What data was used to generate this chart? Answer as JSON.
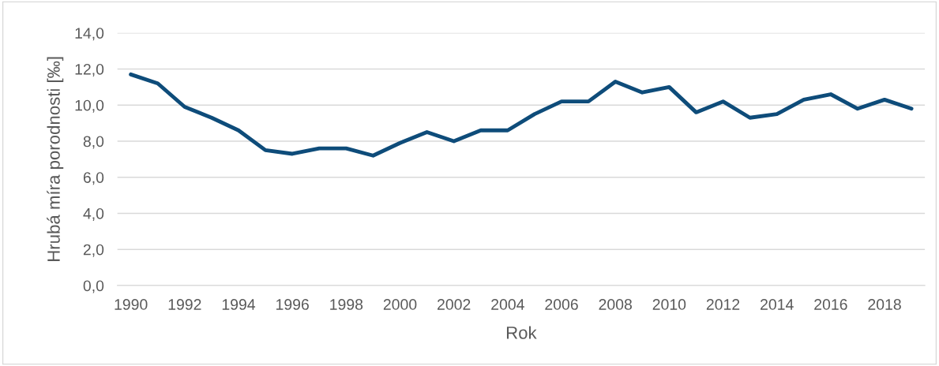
{
  "chart_data": {
    "type": "line",
    "xlabel": "Rok",
    "ylabel": "Hrubá míra porodnosti [‰]",
    "categories": [
      "1990",
      null,
      "1992",
      null,
      "1994",
      null,
      "1996",
      null,
      "1998",
      null,
      "2000",
      null,
      "2002",
      null,
      "2004",
      null,
      "2006",
      null,
      "2008",
      null,
      "2010",
      null,
      "2012",
      null,
      "2014",
      null,
      "2016",
      null,
      "2018",
      null
    ],
    "series": [
      {
        "color": "#0e4c7a",
        "values": [
          11.7,
          11.2,
          9.9,
          9.3,
          8.6,
          7.5,
          7.3,
          7.6,
          7.6,
          7.2,
          7.9,
          8.5,
          8.0,
          8.6,
          8.6,
          9.5,
          10.2,
          10.2,
          11.3,
          10.7,
          11.0,
          9.6,
          10.2,
          9.3,
          9.5,
          10.3,
          10.6,
          9.8,
          10.3,
          9.8
        ]
      }
    ],
    "ylim": [
      0,
      14
    ],
    "yticks": [
      {
        "value": 0,
        "label": "0,0"
      },
      {
        "value": 2,
        "label": "2,0"
      },
      {
        "value": 4,
        "label": "4,0"
      },
      {
        "value": 6,
        "label": "6,0"
      },
      {
        "value": 8,
        "label": "8,0"
      },
      {
        "value": 10,
        "label": "10,0"
      },
      {
        "value": 12,
        "label": "12,0"
      },
      {
        "value": 14,
        "label": "14,0"
      }
    ],
    "grid": "y",
    "legend": false,
    "marker": "none",
    "line_style": "solid"
  }
}
